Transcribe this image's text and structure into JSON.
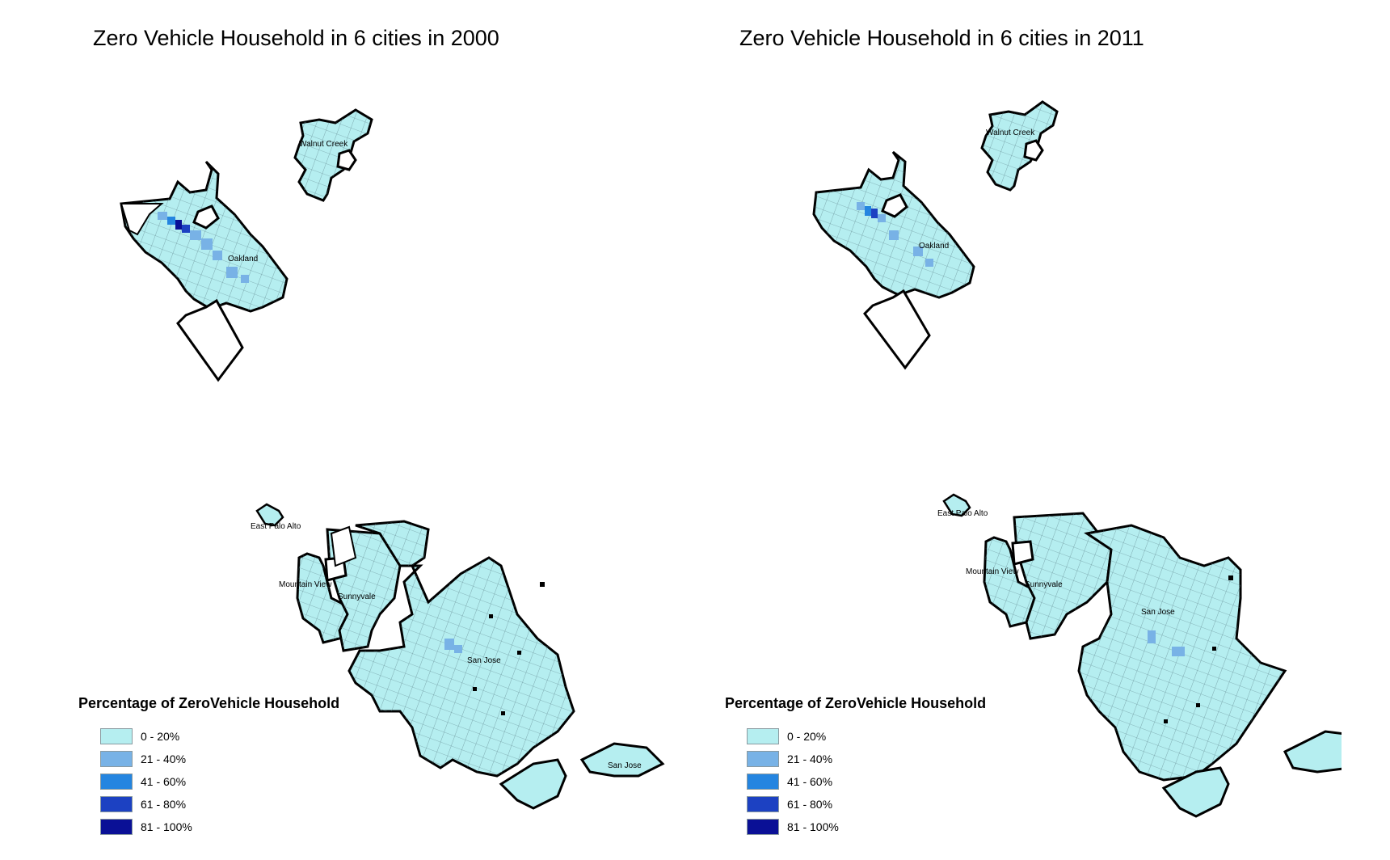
{
  "maps": [
    {
      "id": "2000",
      "title": "Zero Vehicle Household in 6 cities in 2000",
      "city_labels": [
        "Walnut Creek",
        "Oakland",
        "East Palo Alto",
        "Mountain View",
        "Sunnyvale",
        "San Jose",
        "San Jose"
      ],
      "legend": {
        "title": "Percentage of ZeroVehicle Household",
        "classes": [
          {
            "label": "0 - 20%",
            "color": "#b5eef0"
          },
          {
            "label": "21 - 40%",
            "color": "#78b2e6"
          },
          {
            "label": "41 - 60%",
            "color": "#2485e0"
          },
          {
            "label": "61 - 80%",
            "color": "#1c41c2"
          },
          {
            "label": "81 - 100%",
            "color": "#0a1096"
          }
        ]
      }
    },
    {
      "id": "2011",
      "title": "Zero Vehicle Household in 6 cities in 2011",
      "city_labels": [
        "Walnut Creek",
        "Oakland",
        "East Palo Alto",
        "Mountain View",
        "Sunnyvale",
        "San Jose"
      ],
      "legend": {
        "title": "Percentage of ZeroVehicle Household",
        "classes": [
          {
            "label": "0 - 20%",
            "color": "#b5eef0"
          },
          {
            "label": "21 - 40%",
            "color": "#78b2e6"
          },
          {
            "label": "41 - 60%",
            "color": "#2485e0"
          },
          {
            "label": "61 - 80%",
            "color": "#1c41c2"
          },
          {
            "label": "81 - 100%",
            "color": "#0a1096"
          }
        ]
      }
    }
  ],
  "colors": {
    "base_fill": "#b5eef0",
    "outline": "#000000",
    "tract_line": "#5a7e86"
  }
}
